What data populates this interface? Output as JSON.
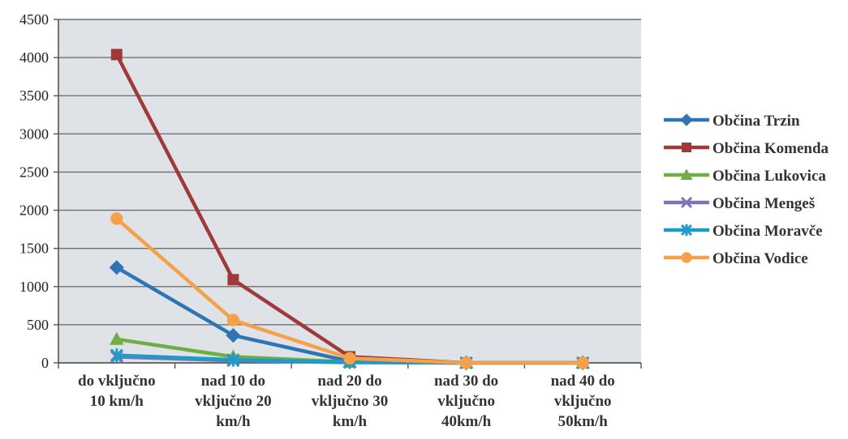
{
  "chart_data": {
    "type": "line",
    "title": "",
    "xlabel": "",
    "ylabel": "",
    "ylim": [
      0,
      4500
    ],
    "yticks": [
      0,
      500,
      1000,
      1500,
      2000,
      2500,
      3000,
      3500,
      4000,
      4500
    ],
    "grid": true,
    "legend_position": "right",
    "categories": [
      [
        "do vključno",
        "10 km/h"
      ],
      [
        "nad 10 do",
        "vključno 20",
        "km/h"
      ],
      [
        "nad 20 do",
        "vključno 30",
        "km/h"
      ],
      [
        "nad 30 do",
        "vključno",
        "40km/h"
      ],
      [
        "nad 40 do",
        "vključno",
        "50km/h"
      ]
    ],
    "series": [
      {
        "name": "Občina Trzin",
        "color": "#2e75b6",
        "marker": "diamond",
        "values": [
          1250,
          360,
          20,
          0,
          0
        ]
      },
      {
        "name": "Občina Komenda",
        "color": "#a0393a",
        "marker": "square",
        "values": [
          4040,
          1090,
          80,
          0,
          0
        ]
      },
      {
        "name": "Občina Lukovica",
        "color": "#70ad47",
        "marker": "triangle",
        "values": [
          310,
          80,
          10,
          0,
          0
        ]
      },
      {
        "name": "Občina Mengeš",
        "color": "#7e73b8",
        "marker": "x",
        "values": [
          80,
          30,
          5,
          0,
          0
        ]
      },
      {
        "name": "Občina Moravče",
        "color": "#1f9bc7",
        "marker": "star",
        "values": [
          100,
          40,
          10,
          0,
          0
        ]
      },
      {
        "name": "Občina Vodice",
        "color": "#f4a14a",
        "marker": "circle",
        "values": [
          1890,
          560,
          60,
          0,
          0
        ]
      }
    ]
  }
}
